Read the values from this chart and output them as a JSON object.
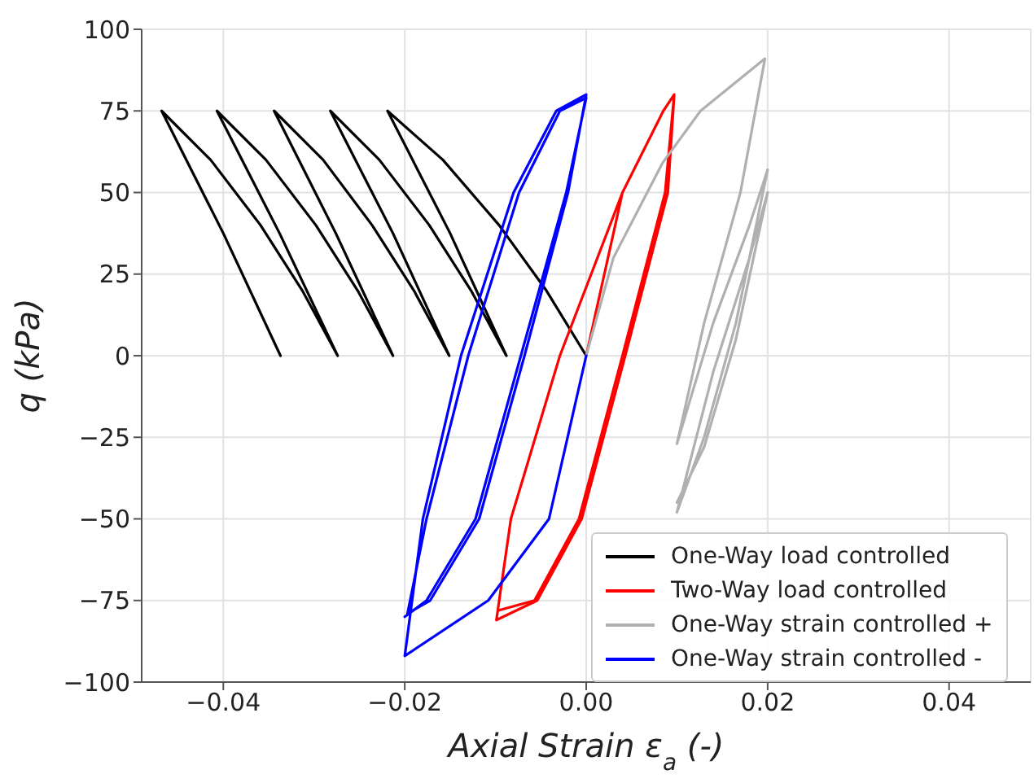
{
  "chart_data": {
    "type": "line",
    "xlabel": "Axial Strain ε$_{a}$ (-)",
    "ylabel": "q (kPa)",
    "xlim": [
      -0.049,
      0.049
    ],
    "ylim": [
      -100,
      100
    ],
    "xticks": [
      {
        "value": -0.04,
        "label": "−0.04"
      },
      {
        "value": -0.02,
        "label": "−0.02"
      },
      {
        "value": 0,
        "label": "0.00"
      },
      {
        "value": 0.02,
        "label": "0.02"
      },
      {
        "value": 0.04,
        "label": "0.04"
      }
    ],
    "yticks": [
      {
        "value": -100,
        "label": "−100"
      },
      {
        "value": -75,
        "label": "−75"
      },
      {
        "value": -50,
        "label": "−50"
      },
      {
        "value": -25,
        "label": "−25"
      },
      0,
      25,
      50,
      75,
      100
    ],
    "grid": true,
    "legend": "bottom right",
    "marker": "none",
    "line_style": "solid",
    "series": [
      {
        "name": "One-Way load controlled",
        "color": "#000000",
        "x": [
          0,
          -0.0044,
          -0.0096,
          -0.0158,
          -0.0219,
          -0.015,
          -0.0088,
          -0.0127,
          -0.0173,
          -0.0228,
          -0.0282,
          -0.0213,
          -0.0151,
          -0.019,
          -0.0236,
          -0.029,
          -0.0344,
          -0.0276,
          -0.0213,
          -0.0252,
          -0.0298,
          -0.0353,
          -0.0407,
          -0.0338,
          -0.0274,
          -0.0313,
          -0.0359,
          -0.0414,
          -0.0468,
          -0.04,
          -0.0337
        ],
        "values": [
          0,
          20,
          40,
          60,
          75,
          37.5,
          0,
          20,
          40,
          60,
          75,
          37.5,
          0,
          20,
          40,
          60,
          75,
          37.5,
          0,
          20,
          40,
          60,
          75,
          37.5,
          0,
          20,
          40,
          60,
          75,
          37.5,
          0
        ]
      },
      {
        "name": "Two-Way load controlled",
        "color": "#ff0000",
        "x": [
          0,
          0.004,
          0.0085,
          0.0097,
          0.009,
          0.0043,
          -0.0005,
          -0.0054,
          -0.0099,
          -0.0083,
          -0.0029,
          0.004,
          0.0085,
          0.0097,
          0.0087,
          0.004,
          -0.0008,
          -0.0057,
          -0.0096
        ],
        "values": [
          0,
          50,
          75,
          80,
          50,
          0,
          -50,
          -75,
          -81,
          -50,
          0,
          50,
          75,
          80,
          50,
          0,
          -50,
          -75,
          -78
        ]
      },
      {
        "name": "One-Way strain controlled +",
        "color": "#b0b0b0",
        "x": [
          0,
          0.003,
          0.0084,
          0.0126,
          0.0197,
          0.017,
          0.013,
          0.01,
          0.014,
          0.018,
          0.02,
          0.0165,
          0.013,
          0.01,
          0.014,
          0.018,
          0.02,
          0.0165,
          0.013,
          0.01
        ],
        "values": [
          0,
          30,
          59,
          75,
          91,
          50,
          10,
          -27,
          10,
          40,
          57,
          10,
          -25,
          -48,
          -5,
          30,
          50,
          5,
          -28,
          -45
        ]
      },
      {
        "name": "One-Way strain controlled -",
        "color": "#0000ff",
        "x": [
          0,
          -0.0041,
          -0.0108,
          -0.02,
          -0.018,
          -0.0138,
          -0.008,
          -0.0033,
          0,
          -0.002,
          -0.0068,
          -0.0118,
          -0.0172,
          -0.0197,
          -0.0176,
          -0.013,
          -0.0074,
          -0.0029,
          0,
          -0.0022,
          -0.0072,
          -0.0122,
          -0.0176,
          -0.02
        ],
        "values": [
          0,
          -50,
          -75,
          -92,
          -50,
          0,
          50,
          75,
          80,
          50,
          0,
          -50,
          -75,
          -79,
          -50,
          0,
          50,
          75,
          79,
          50,
          0,
          -50,
          -75,
          -80
        ]
      }
    ]
  }
}
